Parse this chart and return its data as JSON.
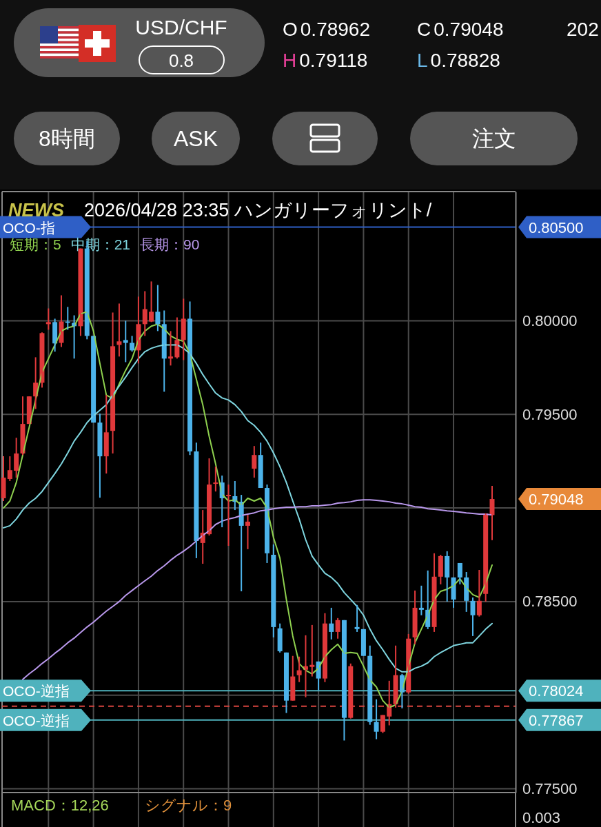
{
  "chart_data": {
    "type": "candlestick",
    "title": "USD/CHF",
    "categories": [
      null,
      null,
      null,
      null,
      null,
      null,
      null,
      null,
      null,
      null,
      null,
      null,
      null,
      null,
      null,
      null,
      null,
      null,
      null,
      null,
      null,
      null,
      null,
      null,
      null,
      null,
      null,
      null,
      null,
      null,
      null,
      null,
      null,
      null,
      null,
      null,
      null,
      null,
      null,
      null,
      null,
      null,
      null,
      null,
      null,
      null,
      null,
      null,
      null,
      null,
      null,
      null,
      null,
      null,
      null,
      null,
      null,
      null,
      null,
      null,
      null,
      null,
      null,
      null,
      null,
      null,
      null,
      null,
      null,
      null,
      null,
      null,
      null,
      null,
      null,
      null,
      null
    ],
    "ohlc": [
      [
        0.79052,
        0.79276,
        0.79037,
        0.79162
      ],
      [
        0.79155,
        0.79276,
        0.79144,
        0.79202
      ],
      [
        0.79199,
        0.79375,
        0.79162,
        0.79291
      ],
      [
        0.79291,
        0.79596,
        0.79283,
        0.79449
      ],
      [
        0.79449,
        0.79596,
        0.79449,
        0.79596
      ],
      [
        0.79596,
        0.79805,
        0.79529,
        0.79669
      ],
      [
        0.79669,
        0.79938,
        0.79643,
        0.79934
      ],
      [
        0.79982,
        0.80066,
        0.79952,
        0.79993
      ],
      [
        0.79993,
        0.80011,
        0.79835,
        0.79879
      ],
      [
        0.79882,
        0.80136,
        0.7986,
        0.79996
      ],
      [
        0.79996,
        0.80074,
        0.79952,
        0.79989
      ],
      [
        0.79989,
        0.80029,
        0.79798,
        0.79971
      ],
      [
        0.79971,
        0.80386,
        0.79919,
        0.80386
      ],
      [
        0.80386,
        0.80426,
        0.79901,
        0.79919
      ],
      [
        0.79919,
        0.79919,
        0.79456,
        0.79456
      ],
      [
        0.79456,
        0.79504,
        0.79055,
        0.79276
      ],
      [
        0.79276,
        0.79603,
        0.79184,
        0.79404
      ],
      [
        0.79412,
        0.80044,
        0.79291,
        0.79864
      ],
      [
        0.79871,
        0.80092,
        0.79809,
        0.7989
      ],
      [
        0.79897,
        0.8,
        0.79779,
        0.79882
      ],
      [
        0.79882,
        0.79919,
        0.79835,
        0.79842
      ],
      [
        0.79842,
        0.80129,
        0.79772,
        0.79982
      ],
      [
        0.79982,
        0.80158,
        0.79919,
        0.80062
      ],
      [
        0.79996,
        0.8021,
        0.79993,
        0.80048
      ],
      [
        0.80048,
        0.80191,
        0.79945,
        0.79982
      ],
      [
        0.79982,
        0.80055,
        0.79621,
        0.79798
      ],
      [
        0.79798,
        0.79945,
        0.79761,
        0.79809
      ],
      [
        0.79805,
        0.80018,
        0.79798,
        0.79897
      ],
      [
        0.79897,
        0.80118,
        0.7979,
        0.80011
      ],
      [
        0.80011,
        0.80103,
        0.79283,
        0.79302
      ],
      [
        0.79302,
        0.79349,
        0.78732,
        0.78824
      ],
      [
        0.78813,
        0.78989,
        0.78702,
        0.78868
      ],
      [
        0.7886,
        0.79265,
        0.78853,
        0.79125
      ],
      [
        0.79129,
        0.79221,
        0.79088,
        0.79136
      ],
      [
        0.79136,
        0.79173,
        0.78897,
        0.79052
      ],
      [
        0.79063,
        0.79125,
        0.78798,
        0.7907
      ],
      [
        0.79063,
        0.79144,
        0.78989,
        0.79033
      ],
      [
        0.79033,
        0.7907,
        0.78555,
        0.78905
      ],
      [
        0.78905,
        0.78963,
        0.7878,
        0.78927
      ],
      [
        0.7921,
        0.79331,
        0.79162,
        0.79283
      ],
      [
        0.79283,
        0.79349,
        0.79107,
        0.79107
      ],
      [
        0.79107,
        0.79125,
        0.78706,
        0.78758
      ],
      [
        0.7875,
        0.78805,
        0.78309,
        0.78364
      ],
      [
        0.78357,
        0.78383,
        0.78228,
        0.78235
      ],
      [
        0.78228,
        0.78228,
        0.77905,
        0.77971
      ],
      [
        0.77971,
        0.7821,
        0.77971,
        0.781
      ],
      [
        0.78107,
        0.78206,
        0.7807,
        0.78133
      ],
      [
        0.78136,
        0.7832,
        0.77989,
        0.78155
      ],
      [
        0.78151,
        0.78375,
        0.781,
        0.78162
      ],
      [
        0.7818,
        0.7818,
        0.78026,
        0.78089
      ],
      [
        0.78089,
        0.78438,
        0.7807,
        0.78383
      ],
      [
        0.78383,
        0.78467,
        0.78298,
        0.78338
      ],
      [
        0.78338,
        0.78412,
        0.78302,
        0.78401
      ],
      [
        0.78401,
        0.78401,
        0.77758,
        0.77879
      ],
      [
        0.77879,
        0.78169,
        0.77875,
        0.78155
      ],
      [
        0.78364,
        0.78482,
        0.78338,
        0.78353
      ],
      [
        0.78353,
        0.78353,
        0.7821,
        0.7821
      ],
      [
        0.7821,
        0.78265,
        0.77842,
        0.77857
      ],
      [
        0.77857,
        0.77978,
        0.77765,
        0.77805
      ],
      [
        0.77805,
        0.77894,
        0.77798,
        0.77894
      ],
      [
        0.77886,
        0.78077,
        0.77839,
        0.77952
      ],
      [
        0.77952,
        0.78265,
        0.77934,
        0.78107
      ],
      [
        0.78107,
        0.78114,
        0.7793,
        0.78015
      ],
      [
        0.78015,
        0.78327,
        0.78008,
        0.78302
      ],
      [
        0.78309,
        0.78559,
        0.78272,
        0.78467
      ],
      [
        0.78467,
        0.78585,
        0.78427,
        0.78456
      ],
      [
        0.78456,
        0.78666,
        0.78353,
        0.78364
      ],
      [
        0.78364,
        0.78758,
        0.78338,
        0.78633
      ],
      [
        0.78633,
        0.7875,
        0.78592,
        0.78743
      ],
      [
        0.78743,
        0.78769,
        0.785,
        0.78629
      ],
      [
        0.78629,
        0.78629,
        0.78467,
        0.78511
      ],
      [
        0.78706,
        0.78706,
        0.78592,
        0.78629
      ],
      [
        0.78629,
        0.78658,
        0.78445,
        0.78504
      ],
      [
        0.78504,
        0.78522,
        0.78316,
        0.78427
      ],
      [
        0.78427,
        0.78669,
        0.7842,
        0.78504
      ],
      [
        0.78541,
        0.78971,
        0.785,
        0.78971
      ],
      [
        0.78962,
        0.79118,
        0.78828,
        0.79048
      ]
    ],
    "colors": [
      "#e0393b",
      "#e0393b",
      "#e0393b",
      "#e0393b",
      "#e0393b",
      "#e0393b",
      "#e0393b",
      "#e0393b",
      "#4db3ea",
      "#e0393b",
      "#4db3ea",
      "#4db3ea",
      "#e0393b",
      "#4db3ea",
      "#4db3ea",
      "#4db3ea",
      "#e0393b",
      "#e0393b",
      "#e0393b",
      "#4db3ea",
      "#4db3ea",
      "#e0393b",
      "#e0393b",
      "#e0393b",
      "#4db3ea",
      "#4db3ea",
      "#e0393b",
      "#e0393b",
      "#e0393b",
      "#4db3ea",
      "#4db3ea",
      "#e0393b",
      "#e0393b",
      "#e0393b",
      "#4db3ea",
      "#e0393b",
      "#4db3ea",
      "#4db3ea",
      "#e0393b",
      "#e0393b",
      "#4db3ea",
      "#4db3ea",
      "#4db3ea",
      "#4db3ea",
      "#4db3ea",
      "#e0393b",
      "#e0393b",
      "#e0393b",
      "#e0393b",
      "#4db3ea",
      "#e0393b",
      "#4db3ea",
      "#e0393b",
      "#4db3ea",
      "#e0393b",
      "#4db3ea",
      "#4db3ea",
      "#4db3ea",
      "#4db3ea",
      "#e0393b",
      "#e0393b",
      "#e0393b",
      "#4db3ea",
      "#e0393b",
      "#e0393b",
      "#4db3ea",
      "#4db3ea",
      "#e0393b",
      "#e0393b",
      "#4db3ea",
      "#4db3ea",
      "#4db3ea",
      "#4db3ea",
      "#4db3ea",
      "#e0393b",
      "#e0393b",
      "#e0393b"
    ],
    "series": [
      {
        "type": "line",
        "name": "短期：5",
        "color": "#8fd14f",
        "values": [
          0.79,
          0.79037,
          0.79136,
          0.79283,
          0.7943,
          0.79577,
          0.79724,
          0.79798,
          0.79871,
          0.79945,
          0.79963,
          0.79971,
          0.80037,
          0.80048,
          0.79945,
          0.79772,
          0.79603,
          0.79585,
          0.79662,
          0.79735,
          0.79798,
          0.79897,
          0.79945,
          0.79971,
          0.79982,
          0.79956,
          0.79919,
          0.79901,
          0.7989,
          0.79824,
          0.79688,
          0.79552,
          0.79382,
          0.79235,
          0.79074,
          0.79037,
          0.79044,
          0.79015,
          0.79052,
          0.79037,
          0.79052,
          0.79,
          0.78842,
          0.78732,
          0.78511,
          0.78316,
          0.78169,
          0.78133,
          0.78114,
          0.78144,
          0.78206,
          0.78243,
          0.78272,
          0.78224,
          0.78228,
          0.78224,
          0.78155,
          0.78081,
          0.78044,
          0.77971,
          0.77934,
          0.77949,
          0.78022,
          0.78155,
          0.7828,
          0.78353,
          0.78427,
          0.78511,
          0.78555,
          0.78566,
          0.78585,
          0.78622,
          0.78574,
          0.78537,
          0.78522,
          0.78596,
          0.78695
        ]
      },
      {
        "type": "line",
        "name": "中期：21",
        "color": "#7fd6e0",
        "values": [
          0.78894,
          0.78905,
          0.78941,
          0.78989,
          0.79026,
          0.79052,
          0.79088,
          0.79136,
          0.79184,
          0.79235,
          0.79294,
          0.79357,
          0.79404,
          0.79456,
          0.79493,
          0.79522,
          0.79552,
          0.79603,
          0.79651,
          0.79699,
          0.7975,
          0.79798,
          0.79835,
          0.79853,
          0.79864,
          0.79871,
          0.79871,
          0.79871,
          0.79853,
          0.79824,
          0.79772,
          0.79713,
          0.79662,
          0.79614,
          0.79588,
          0.79577,
          0.79552,
          0.79515,
          0.79467,
          0.79441,
          0.79404,
          0.79357,
          0.79294,
          0.79221,
          0.79136,
          0.79037,
          0.78941,
          0.78831,
          0.78743,
          0.78695,
          0.78651,
          0.78629,
          0.78596,
          0.78548,
          0.78511,
          0.78474,
          0.78427,
          0.78353,
          0.78291,
          0.78243,
          0.78191,
          0.78144,
          0.78125,
          0.78125,
          0.78144,
          0.78155,
          0.78173,
          0.78206,
          0.78228,
          0.78246,
          0.78265,
          0.78272,
          0.7828,
          0.7828,
          0.78316,
          0.78353,
          0.78383
        ]
      },
      {
        "type": "line",
        "name": "長期：90",
        "color": "#b998ec",
        "values": [
          null,
          null,
          null,
          0.78085,
          0.78114,
          0.7814,
          0.78169,
          0.78195,
          0.78224,
          0.7825,
          0.7828,
          0.78305,
          0.78335,
          0.78364,
          0.7839,
          0.7842,
          0.78449,
          0.78474,
          0.785,
          0.78533,
          0.78559,
          0.78585,
          0.78611,
          0.78636,
          0.78666,
          0.78691,
          0.78721,
          0.78747,
          0.78769,
          0.78794,
          0.78824,
          0.78853,
          0.78879,
          0.78912,
          0.7893,
          0.78941,
          0.78949,
          0.7896,
          0.78967,
          0.78974,
          0.78985,
          0.78989,
          0.78996,
          0.79,
          0.79004,
          0.79004,
          0.79007,
          0.79007,
          0.79011,
          0.79011,
          0.79015,
          0.79018,
          0.79026,
          0.79029,
          0.79033,
          0.79041,
          0.79044,
          0.79044,
          0.79041,
          0.79037,
          0.79033,
          0.79026,
          0.79022,
          0.79015,
          0.79007,
          0.79004,
          0.78996,
          0.78993,
          0.78989,
          0.78985,
          0.78982,
          0.78978,
          0.78974,
          0.78971,
          0.78967,
          0.78967,
          0.78963
        ]
      }
    ],
    "ylim": [
      0.7748,
      0.8069
    ],
    "yticks": [
      {
        "value": 0.775,
        "label": "0.77500"
      },
      {
        "value": 0.78,
        "label": null
      },
      {
        "value": 0.785,
        "label": "0.78500"
      },
      {
        "value": 0.79,
        "label": null
      },
      {
        "value": 0.795,
        "label": "0.79500"
      },
      {
        "value": 0.8,
        "label": "0.80000"
      }
    ],
    "tick_labels": "y",
    "grid": true,
    "legend": "top left",
    "ref_lines": [
      {
        "axis": "y",
        "value": 0.805,
        "label": "OCO-指",
        "color": "#2f5fc6"
      },
      {
        "axis": "y",
        "value": 0.78024,
        "label": "OCO-逆指",
        "color": "#4fb2bd"
      },
      {
        "axis": "y",
        "value": 0.77867,
        "label": "OCO-逆指",
        "color": "#4fb2bd"
      },
      {
        "axis": "y",
        "value": 0.77941,
        "color": "#d9453f",
        "line_style": "dashed"
      }
    ],
    "annotations": [
      "0.8",
      "O0.78962",
      "C0.79048",
      "H0.79118",
      "L0.78828",
      "202",
      "8時間",
      "ASK",
      "注文",
      "NEWS",
      "2026/04/28 23:35 ハンガリーフォリント/",
      "0.79048",
      "MACD：12,26",
      "シグナル：9",
      "0.003",
      "0.80500",
      "0.78024",
      "0.77867"
    ]
  }
}
